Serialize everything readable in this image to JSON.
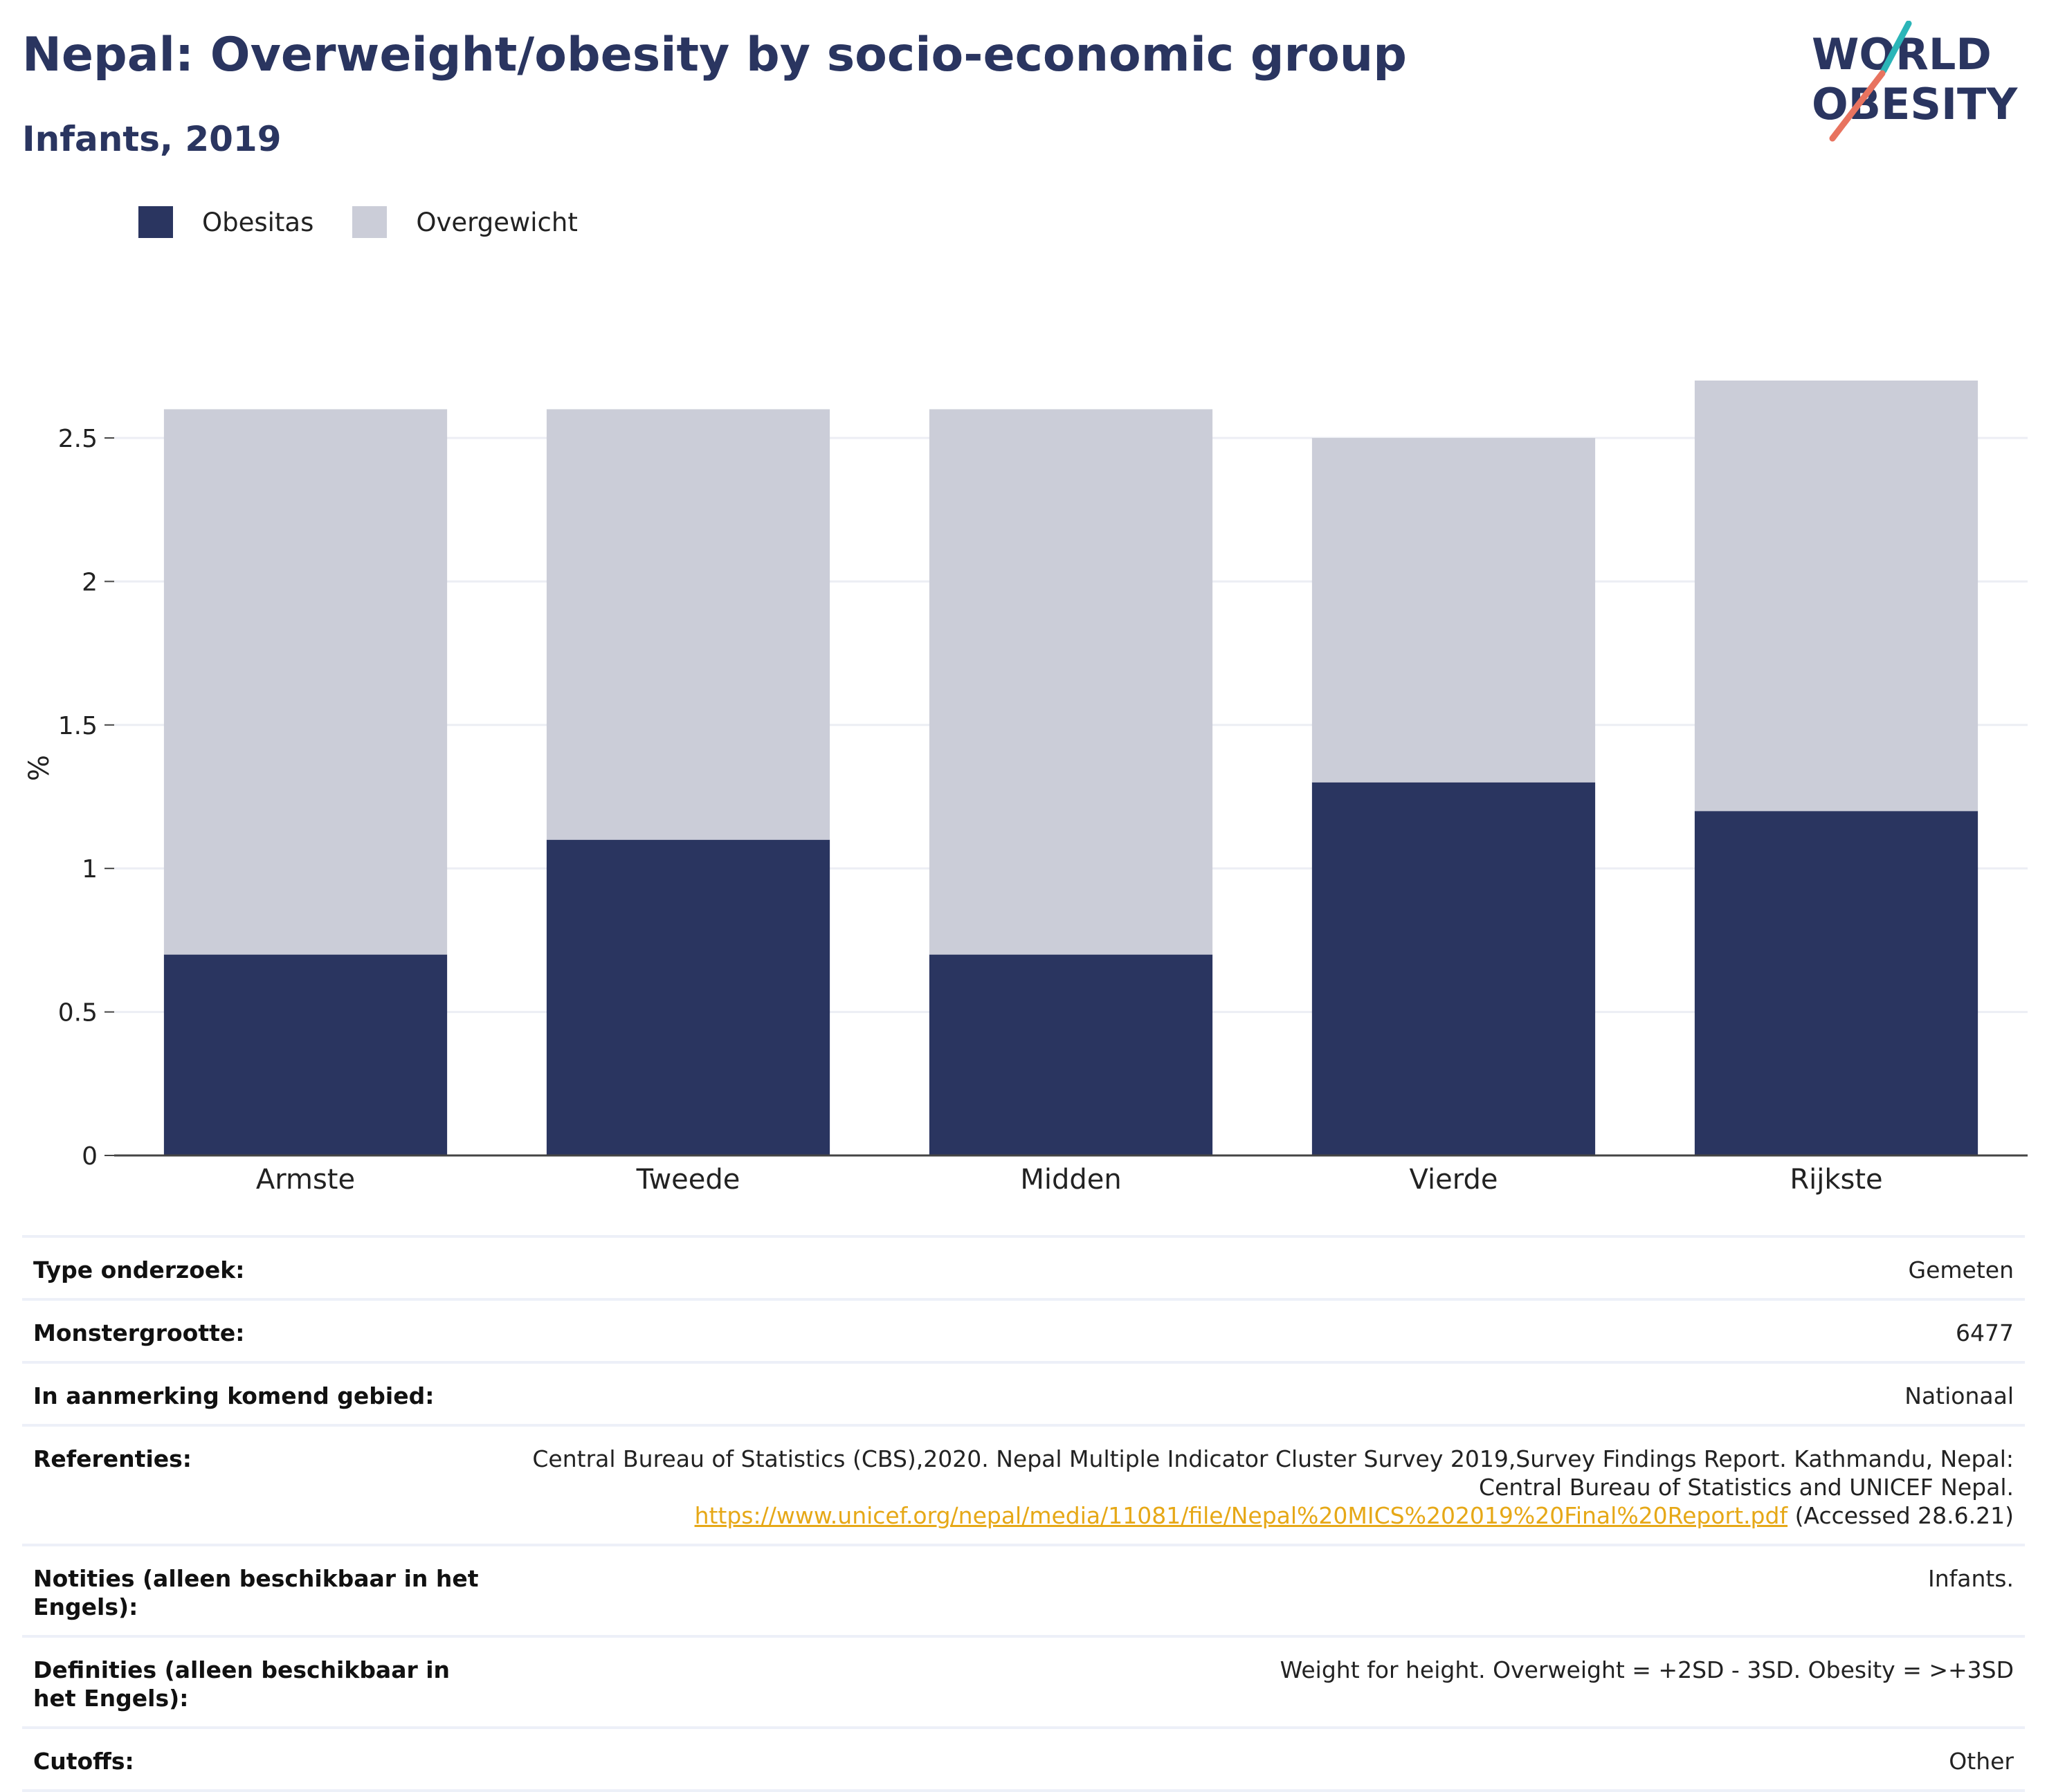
{
  "header": {
    "title": "Nepal: Overweight/obesity by socio-economic group",
    "subtitle": "Infants, 2019"
  },
  "logo": {
    "line1": "WORLD",
    "line2": "OBESITY",
    "accent_teal": "#2bb5b8",
    "accent_coral": "#e8735f",
    "text_color": "#2a3560"
  },
  "chart_data": {
    "type": "bar",
    "stacked": true,
    "categories": [
      "Armste",
      "Tweede",
      "Midden",
      "Vierde",
      "Rijkste"
    ],
    "series": [
      {
        "name": "Obesitas",
        "color": "#2a3560",
        "values": [
          0.7,
          1.1,
          0.7,
          1.3,
          1.2
        ]
      },
      {
        "name": "Overgewicht",
        "color": "#cbcdd8",
        "values": [
          1.9,
          1.5,
          1.9,
          1.2,
          1.5
        ]
      }
    ],
    "ylabel": "%",
    "ylim": [
      0,
      2.7
    ],
    "yticks": [
      0,
      0.5,
      1,
      1.5,
      2,
      2.5
    ],
    "ytick_labels": [
      "0",
      "0.5",
      "1",
      "1.5",
      "2",
      "2.5"
    ],
    "grid": true,
    "legend_position": "top-left"
  },
  "info": [
    {
      "label": "Type onderzoek:",
      "value": "Gemeten"
    },
    {
      "label": "Monstergrootte:",
      "value": "6477"
    },
    {
      "label": "In aanmerking komend gebied:",
      "value": "Nationaal"
    },
    {
      "label": "Referenties:",
      "value_line1": "Central Bureau of Statistics (CBS),2020. Nepal Multiple Indicator Cluster Survey 2019,Survey Findings Report. Kathmandu, Nepal:",
      "value_line2": "Central Bureau of Statistics and UNICEF Nepal.",
      "link": "https://www.unicef.org/nepal/media/11081/file/Nepal%20MICS%202019%20Final%20Report.pdf",
      "link_suffix": "(Accessed 28.6.21)"
    },
    {
      "label": "Notities (alleen beschikbaar in het Engels):",
      "value": "Infants."
    },
    {
      "label": "Definities (alleen beschikbaar in het Engels):",
      "value": "Weight for height. Overweight = +2SD - 3SD. Obesity = >+3SD"
    },
    {
      "label": "Cutoffs:",
      "value": "Other"
    }
  ]
}
